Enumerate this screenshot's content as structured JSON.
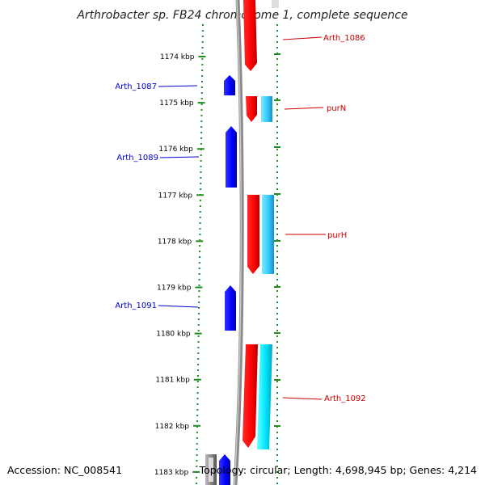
{
  "title": "Arthrobacter sp. FB24 chromosome 1, complete sequence",
  "footer": {
    "accession": "Accession: NC_008541",
    "summary": "Topology: circular; Length: 4,698,945 bp; Genes: 4,214"
  },
  "ticks": [
    {
      "kbp": 1174,
      "label": "1174 kbp"
    },
    {
      "kbp": 1175,
      "label": "1175 kbp"
    },
    {
      "kbp": 1176,
      "label": "1176 kbp"
    },
    {
      "kbp": 1177,
      "label": "1177 kbp"
    },
    {
      "kbp": 1178,
      "label": "1178 kbp"
    },
    {
      "kbp": 1179,
      "label": "1179 kbp"
    },
    {
      "kbp": 1180,
      "label": "1180 kbp"
    },
    {
      "kbp": 1181,
      "label": "1181 kbp"
    },
    {
      "kbp": 1182,
      "label": "1182 kbp"
    },
    {
      "kbp": 1183,
      "label": "1183 kbp"
    }
  ],
  "colors": {
    "forward_gene": "#ff0000",
    "forward_cds": "#33ccff",
    "reverse_gene": "#0000ff",
    "backbone": "#888888",
    "dotted_ring": "#228b22",
    "label_forward": "#cc0000",
    "label_reverse": "#0000cc"
  },
  "labels": [
    {
      "id": "arth-1086",
      "text": "Arth_1086",
      "strand": "forward"
    },
    {
      "id": "purn",
      "text": "purN",
      "strand": "forward"
    },
    {
      "id": "purh",
      "text": "purH",
      "strand": "forward"
    },
    {
      "id": "arth-1092",
      "text": "Arth_1092",
      "strand": "forward"
    },
    {
      "id": "arth-1087",
      "text": "Arth_1087",
      "strand": "reverse"
    },
    {
      "id": "arth-1089",
      "text": "Arth_1089",
      "strand": "reverse"
    },
    {
      "id": "arth-1091",
      "text": "Arth_1091",
      "strand": "reverse"
    }
  ]
}
